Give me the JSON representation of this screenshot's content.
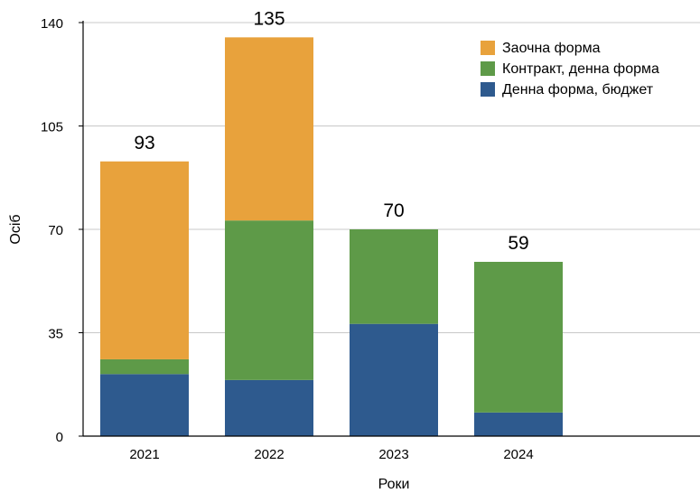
{
  "chart_data": {
    "type": "bar",
    "stacked": true,
    "categories": [
      "2021",
      "2022",
      "2023",
      "2024"
    ],
    "series": [
      {
        "name": "Денна форма, бюджет",
        "values": [
          21,
          19,
          38,
          8
        ],
        "color": "#2e5a8e"
      },
      {
        "name": "Контракт, денна форма",
        "values": [
          5,
          54,
          32,
          51
        ],
        "color": "#5e9a48"
      },
      {
        "name": "Заочна форма",
        "values": [
          67,
          62,
          0,
          0
        ],
        "color": "#e8a23c"
      }
    ],
    "totals": [
      "93",
      "135",
      "70",
      "59"
    ],
    "xlabel": "Роки",
    "ylabel": "Осіб",
    "ylim": [
      0,
      140
    ],
    "yticks": [
      "0",
      "35",
      "70",
      "105",
      "140"
    ],
    "grid": true,
    "legend_position": "top-right",
    "legend_order": [
      "Заочна форма",
      "Контракт, денна форма",
      "Денна форма, бюджет"
    ]
  }
}
